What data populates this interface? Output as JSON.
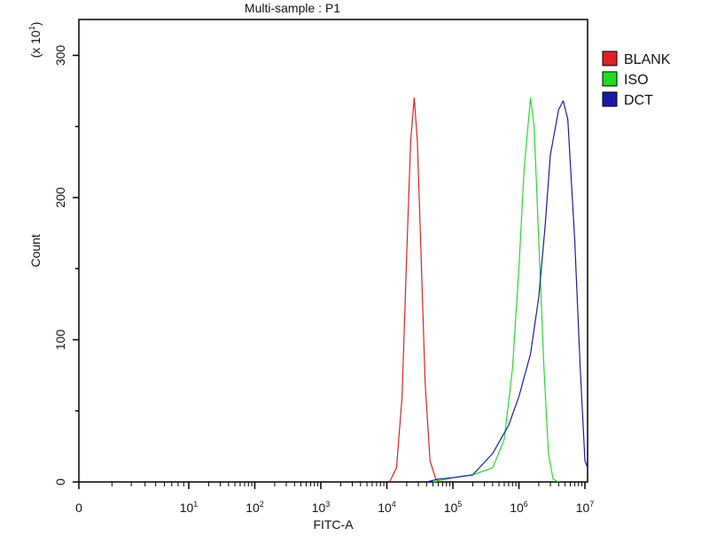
{
  "chart_data": {
    "type": "line",
    "title": "Multi-sample : P1",
    "xlabel": "FITC-A",
    "ylabel": "Count",
    "y_multiplier": "(x 10",
    "y_multiplier_exp": "1",
    "y_multiplier_close": ")",
    "x_scale": "biexponential (log decades)",
    "xlim": [
      0,
      10000000
    ],
    "ylim": [
      0,
      325
    ],
    "x_ticks": [
      {
        "value": 0,
        "base": "0",
        "exp": ""
      },
      {
        "value": 10,
        "base": "10",
        "exp": "1"
      },
      {
        "value": 100,
        "base": "10",
        "exp": "2"
      },
      {
        "value": 1000,
        "base": "10",
        "exp": "3"
      },
      {
        "value": 10000,
        "base": "10",
        "exp": "4"
      },
      {
        "value": 100000,
        "base": "10",
        "exp": "5"
      },
      {
        "value": 1000000,
        "base": "10",
        "exp": "6"
      },
      {
        "value": 10000000,
        "base": "10",
        "exp": "7"
      }
    ],
    "y_ticks": [
      "0",
      "100",
      "200",
      "300"
    ],
    "y_tick_values": [
      0,
      100,
      200,
      300
    ],
    "grid": false,
    "legend_position": "right",
    "series": [
      {
        "name": "BLANK",
        "color": "#e02020",
        "points": [
          [
            11000,
            0
          ],
          [
            14000,
            10
          ],
          [
            17000,
            60
          ],
          [
            20000,
            160
          ],
          [
            23000,
            240
          ],
          [
            26000,
            270
          ],
          [
            29000,
            240
          ],
          [
            33000,
            160
          ],
          [
            38000,
            70
          ],
          [
            45000,
            15
          ],
          [
            55000,
            2
          ],
          [
            65000,
            0
          ]
        ]
      },
      {
        "name": "ISO",
        "color": "#22dd22",
        "points": [
          [
            50000,
            0
          ],
          [
            100000,
            3
          ],
          [
            200000,
            5
          ],
          [
            400000,
            10
          ],
          [
            600000,
            30
          ],
          [
            800000,
            80
          ],
          [
            1000000,
            150
          ],
          [
            1200000,
            220
          ],
          [
            1500000,
            270
          ],
          [
            1700000,
            250
          ],
          [
            2000000,
            170
          ],
          [
            2400000,
            80
          ],
          [
            2800000,
            20
          ],
          [
            3300000,
            2
          ],
          [
            4000000,
            0
          ]
        ]
      },
      {
        "name": "DCT",
        "color": "#1a1aaa",
        "points": [
          [
            40000,
            0
          ],
          [
            60000,
            2
          ],
          [
            100000,
            3
          ],
          [
            200000,
            5
          ],
          [
            400000,
            20
          ],
          [
            700000,
            40
          ],
          [
            1000000,
            60
          ],
          [
            1500000,
            90
          ],
          [
            2000000,
            130
          ],
          [
            2500000,
            180
          ],
          [
            3000000,
            230
          ],
          [
            4000000,
            262
          ],
          [
            4700000,
            268
          ],
          [
            5500000,
            255
          ],
          [
            7000000,
            170
          ],
          [
            8500000,
            80
          ],
          [
            10000000,
            15
          ],
          [
            11000000,
            10
          ]
        ]
      }
    ]
  }
}
